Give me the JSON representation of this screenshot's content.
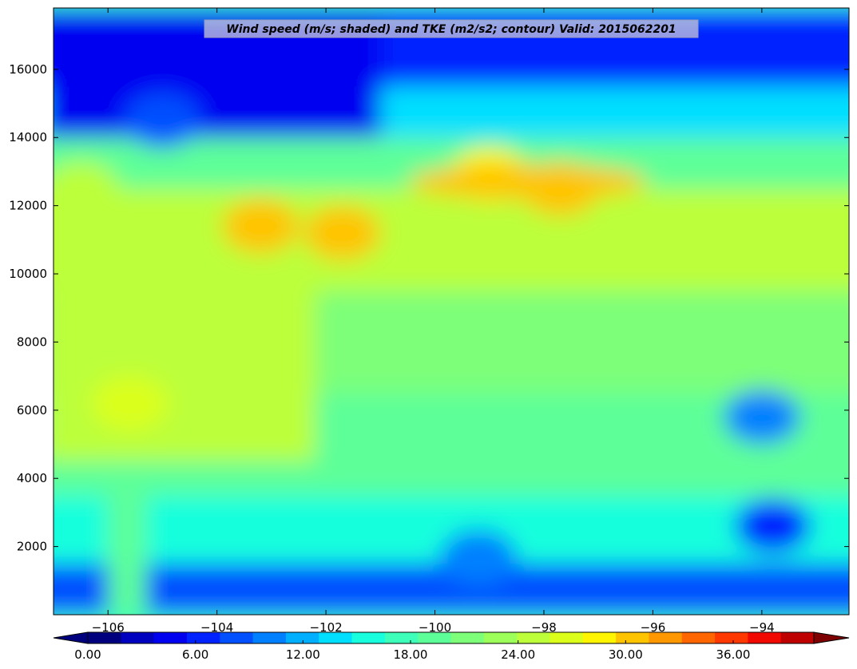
{
  "chart_data": {
    "type": "heatmap",
    "title": "Wind speed (m/s; shaded) and TKE (m2/s2; contour) Valid: 2015062201",
    "xlabel": "",
    "ylabel": "",
    "xlim": [
      -107.0,
      -92.4
    ],
    "ylim": [
      0,
      17800
    ],
    "x_ticks": [
      -106,
      -104,
      -102,
      -100,
      -98,
      -96,
      -94
    ],
    "x_tick_labels": [
      "−106",
      "−104",
      "−102",
      "−100",
      "−98",
      "−96",
      "−94"
    ],
    "y_ticks": [
      2000,
      4000,
      6000,
      8000,
      10000,
      12000,
      14000,
      16000
    ],
    "y_tick_labels": [
      "2000",
      "4000",
      "6000",
      "8000",
      "10000",
      "12000",
      "14000",
      "16000"
    ],
    "grid": false,
    "colormap": "jet",
    "colorbar": {
      "orientation": "horizontal",
      "placement": "bottom",
      "extend": "both",
      "levels": [
        0,
        1.5,
        3,
        4.5,
        6,
        7.5,
        9,
        10.5,
        12,
        13.5,
        15,
        16.5,
        18,
        19.5,
        21,
        22.5,
        24,
        25.5,
        27,
        28.5,
        30,
        31.5,
        33,
        34.5,
        36,
        37.5,
        39,
        40.5
      ],
      "tick_values": [
        0,
        6,
        12,
        18,
        24,
        30,
        36
      ],
      "tick_labels": [
        "0.00",
        "6.00",
        "12.00",
        "18.00",
        "24.00",
        "30.00",
        "36.00"
      ],
      "colors": [
        "#00007f",
        "#0000bf",
        "#0000f1",
        "#0022ff",
        "#0050ff",
        "#0080ff",
        "#00afff",
        "#00dfff",
        "#19ffdd",
        "#3effb9",
        "#5dff99",
        "#7dff79",
        "#9cff5a",
        "#bcff3a",
        "#dbff1b",
        "#fff500",
        "#ffc400",
        "#ff9700",
        "#ff6600",
        "#ff3800",
        "#f10800",
        "#bf0000"
      ],
      "under_color": "#00007f",
      "over_color": "#7f0000"
    },
    "features": [
      {
        "lon": -103.2,
        "z": 11400,
        "value": 31
      },
      {
        "lon": -101.7,
        "z": 11200,
        "value": 31
      },
      {
        "lon": -97.7,
        "z": 12500,
        "value": 31
      },
      {
        "lon": -99.0,
        "z": 12900,
        "value": 29
      },
      {
        "lon": -105.6,
        "z": 6200,
        "value": 27
      },
      {
        "lon": -93.8,
        "z": 2600,
        "value": 6
      },
      {
        "lon": -99.2,
        "z": 1700,
        "value": 10
      },
      {
        "lon": -94.0,
        "z": 5800,
        "value": 11
      },
      {
        "lon": -105.0,
        "z": 14500,
        "value": 8
      },
      {
        "lon": -106.5,
        "z": 12500,
        "value": 25
      }
    ]
  }
}
